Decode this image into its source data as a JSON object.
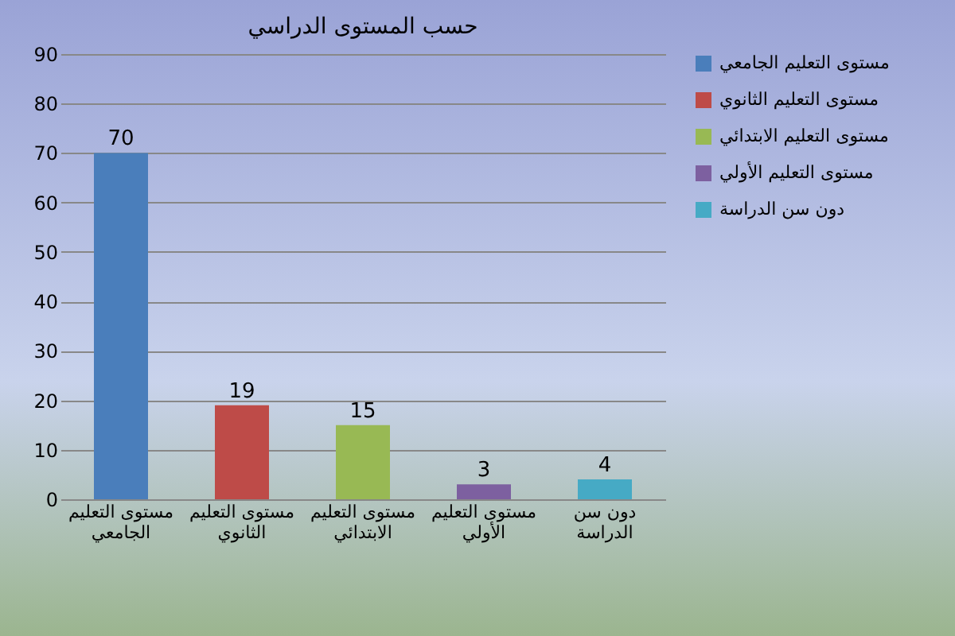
{
  "chart_data": {
    "type": "bar",
    "title": "حسب المستوى الدراسي",
    "categories": [
      "مستوى التعليم الجامعي",
      "مستوى التعليم الثانوي",
      "مستوى التعليم الابتدائي",
      "مستوى التعليم الأولي",
      "دون سن الدراسة"
    ],
    "series": [
      {
        "name": "مستوى التعليم الجامعي",
        "color": "#4a7ebb",
        "values": [
          70,
          null,
          null,
          null,
          null
        ]
      },
      {
        "name": "مستوى التعليم الثانوي",
        "color": "#be4b48",
        "values": [
          null,
          19,
          null,
          null,
          null
        ]
      },
      {
        "name": "مستوى التعليم الابتدائي",
        "color": "#98b954",
        "values": [
          null,
          null,
          15,
          null,
          null
        ]
      },
      {
        "name": "مستوى التعليم الأولي",
        "color": "#7d60a0",
        "values": [
          null,
          null,
          null,
          3,
          null
        ]
      },
      {
        "name": "دون سن الدراسة",
        "color": "#46aac5",
        "values": [
          null,
          null,
          null,
          null,
          4
        ]
      }
    ],
    "ylim": [
      0,
      90
    ],
    "yticks": [
      0,
      10,
      20,
      30,
      40,
      50,
      60,
      70,
      80,
      90
    ],
    "grid": "y",
    "legend": "right",
    "data_labels": true
  }
}
